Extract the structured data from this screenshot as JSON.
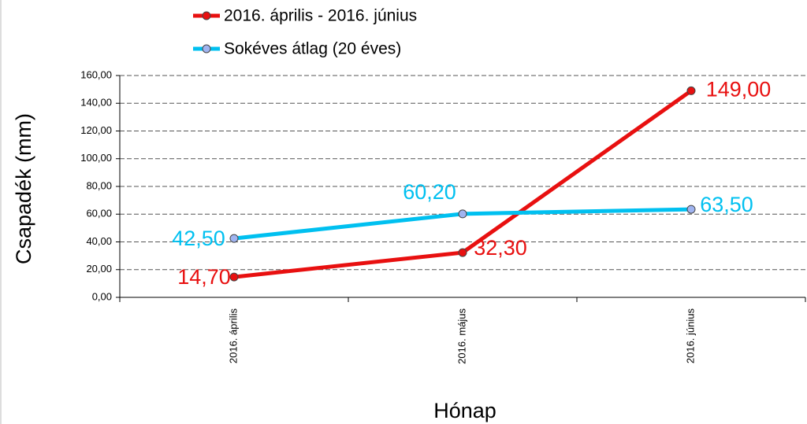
{
  "chart_data": {
    "type": "line",
    "y_label": "Csapadék (mm)",
    "x_label": "Hónap",
    "categories": [
      "2016. április",
      "2016. május",
      "2016. június"
    ],
    "series": [
      {
        "name": "2016. április - 2016. június",
        "color": "#e81010",
        "marker_color": "#e81010",
        "values": [
          14.7,
          32.3,
          149.0
        ],
        "value_labels": [
          "14,70",
          "32,30",
          "149,00"
        ]
      },
      {
        "name": "Sokéves átlag (20 éves)",
        "color": "#00c0f0",
        "marker_color": "#a0b4f0",
        "values": [
          42.5,
          60.2,
          63.5
        ],
        "value_labels": [
          "42,50",
          "60,20",
          "63,50"
        ]
      }
    ],
    "ylim": [
      0,
      160
    ],
    "yticks": [
      {
        "value": 0,
        "label": "0,00"
      },
      {
        "value": 20,
        "label": "20,00"
      },
      {
        "value": 40,
        "label": "40,00"
      },
      {
        "value": 60,
        "label": "60,00"
      },
      {
        "value": 80,
        "label": "80,00"
      },
      {
        "value": 100,
        "label": "100,00"
      },
      {
        "value": 120,
        "label": "120,00"
      },
      {
        "value": 140,
        "label": "140,00"
      },
      {
        "value": 160,
        "label": "160,00"
      }
    ],
    "grid": true
  }
}
